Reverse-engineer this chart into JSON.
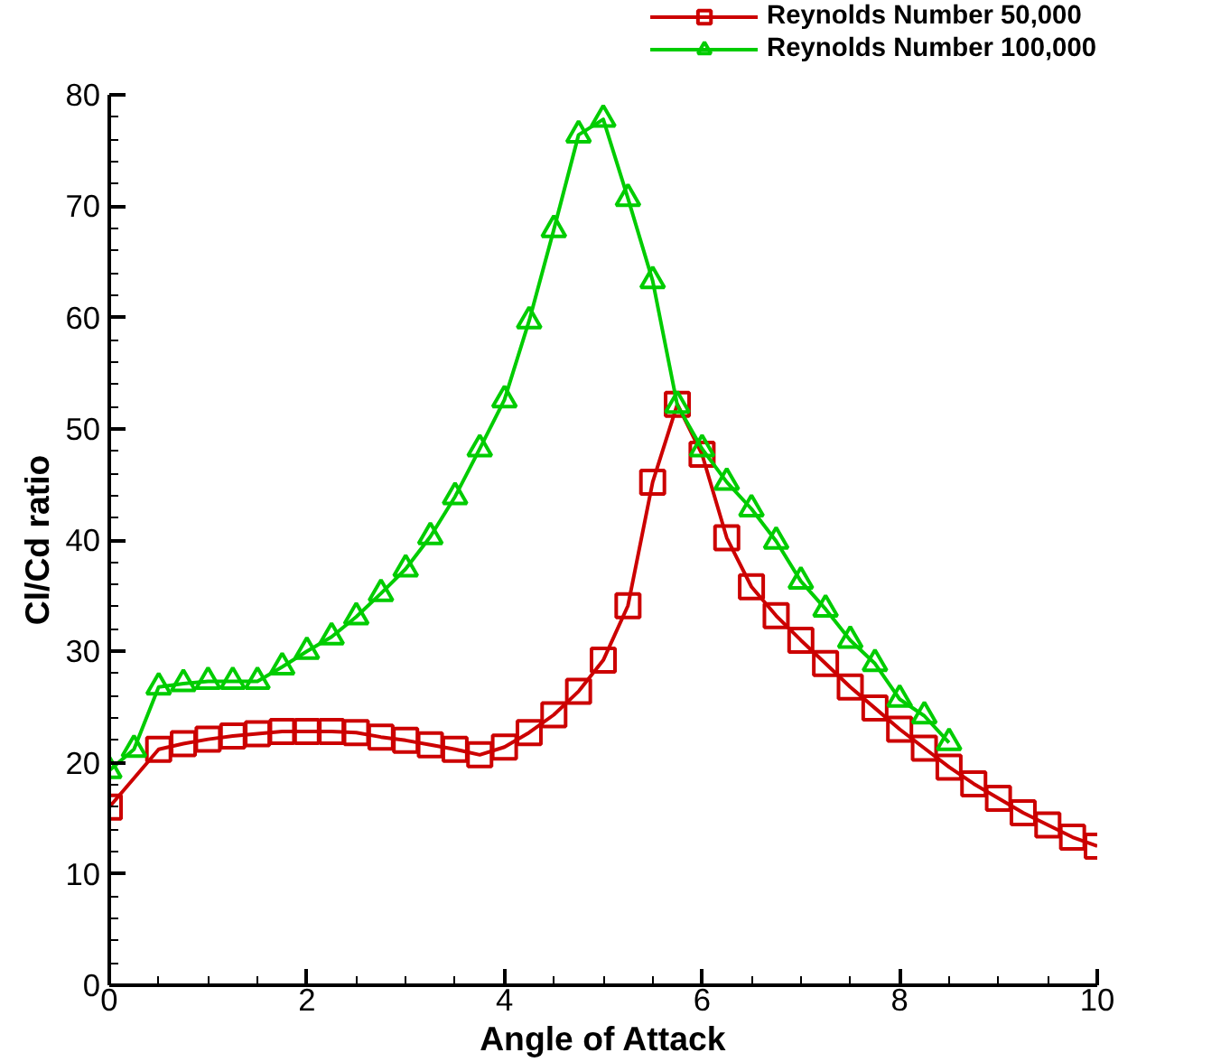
{
  "chart_data": {
    "type": "line",
    "xlabel": "Angle of Attack",
    "ylabel": "Cl/Cd ratio",
    "xlim": [
      0,
      10
    ],
    "ylim": [
      0,
      80
    ],
    "xticks": [
      0,
      2,
      4,
      6,
      8,
      10
    ],
    "yticks": [
      0,
      10,
      20,
      30,
      40,
      50,
      60,
      70,
      80
    ],
    "grid": false,
    "legend": "top right",
    "line_style": "solid",
    "series": [
      {
        "name": "Reynolds Number 50,000",
        "color": "#cc0000",
        "marker": "square",
        "x": [
          0,
          0.5,
          0.75,
          1,
          1.25,
          1.5,
          1.75,
          2,
          2.25,
          2.5,
          2.75,
          3,
          3.25,
          3.5,
          3.75,
          4,
          4.25,
          4.5,
          4.75,
          5,
          5.25,
          5.5,
          5.75,
          6,
          6.25,
          6.5,
          6.75,
          7,
          7.25,
          7.5,
          7.75,
          8,
          8.25,
          8.5,
          8.75,
          9,
          9.25,
          9.5,
          9.75,
          10
        ],
        "values": [
          16.0,
          21.2,
          21.7,
          22.1,
          22.4,
          22.6,
          22.8,
          22.8,
          22.8,
          22.7,
          22.3,
          22.0,
          21.6,
          21.2,
          20.7,
          21.4,
          22.7,
          24.3,
          26.4,
          29.2,
          34.1,
          45.2,
          52.2,
          47.7,
          40.2,
          35.8,
          33.2,
          31.0,
          28.9,
          26.8,
          24.9,
          23.0,
          21.3,
          19.6,
          18.1,
          16.8,
          15.5,
          14.4,
          13.3,
          12.5
        ]
      },
      {
        "name": "Reynolds Number 100,000",
        "color": "#00cc00",
        "marker": "triangle",
        "x": [
          0,
          0.25,
          0.5,
          0.75,
          1,
          1.25,
          1.5,
          1.75,
          2,
          2.25,
          2.5,
          2.75,
          3,
          3.25,
          3.5,
          3.75,
          4,
          4.25,
          4.5,
          4.75,
          5,
          5.25,
          5.5,
          5.75,
          6,
          6.25,
          6.5,
          6.75,
          7,
          7.25,
          7.5,
          7.75,
          8,
          8.25,
          8.5
        ],
        "values": [
          19.3,
          21.2,
          26.8,
          27.1,
          27.3,
          27.3,
          27.3,
          28.6,
          30.0,
          31.3,
          33.1,
          35.2,
          37.4,
          40.3,
          43.9,
          48.2,
          52.6,
          59.7,
          67.9,
          76.4,
          77.8,
          70.7,
          63.3,
          52.1,
          48.2,
          45.2,
          42.8,
          39.9,
          36.3,
          33.8,
          31.0,
          28.9,
          25.7,
          24.2,
          21.8
        ]
      }
    ]
  }
}
